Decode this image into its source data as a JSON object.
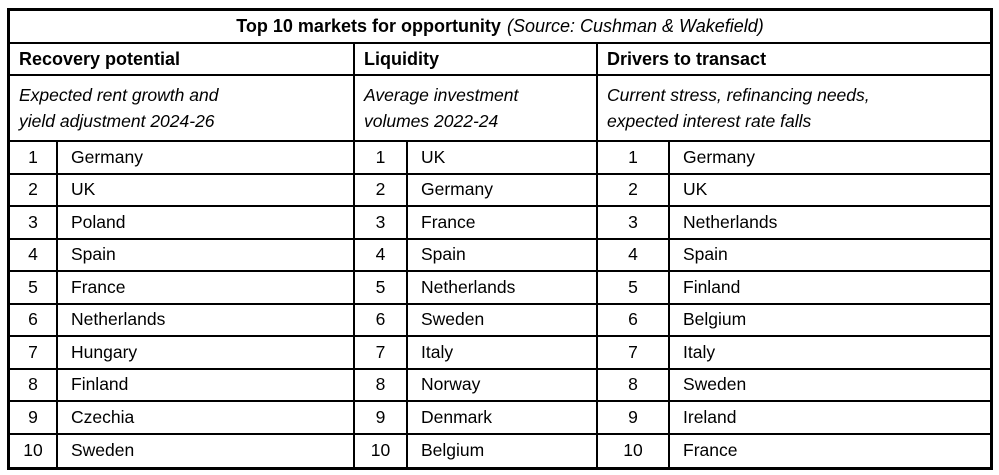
{
  "chart_data": {
    "type": "table",
    "title": "Top 10 markets for opportunity",
    "source_note": "(Source: Cushman & Wakefield)",
    "ranks": [
      "1",
      "2",
      "3",
      "4",
      "5",
      "6",
      "7",
      "8",
      "9",
      "10"
    ],
    "columns": [
      {
        "header": "Recovery potential",
        "subtitle": "Expected rent growth and yield adjustment 2024-26",
        "subtitle_lines": [
          "Expected rent growth and",
          "yield adjustment 2024-26"
        ],
        "rankings": [
          "Germany",
          "UK",
          "Poland",
          "Spain",
          "France",
          "Netherlands",
          "Hungary",
          "Finland",
          "Czechia",
          "Sweden"
        ]
      },
      {
        "header": "Liquidity",
        "subtitle": "Average investment volumes 2022-24",
        "subtitle_lines": [
          "Average investment",
          "volumes 2022-24"
        ],
        "rankings": [
          "UK",
          "Germany",
          "France",
          "Spain",
          "Netherlands",
          "Sweden",
          "Italy",
          "Norway",
          "Denmark",
          "Belgium"
        ]
      },
      {
        "header": "Drivers to transact",
        "subtitle": "Current stress, refinancing needs, expected interest rate falls",
        "subtitle_lines": [
          "Current stress, refinancing needs,",
          "expected interest rate falls"
        ],
        "rankings": [
          "Germany",
          "UK",
          "Netherlands",
          "Spain",
          "Finland",
          "Belgium",
          "Italy",
          "Sweden",
          "Ireland",
          "France"
        ]
      }
    ],
    "colors": {
      "border": "#000000",
      "background": "#ffffff",
      "text": "#000000"
    }
  }
}
